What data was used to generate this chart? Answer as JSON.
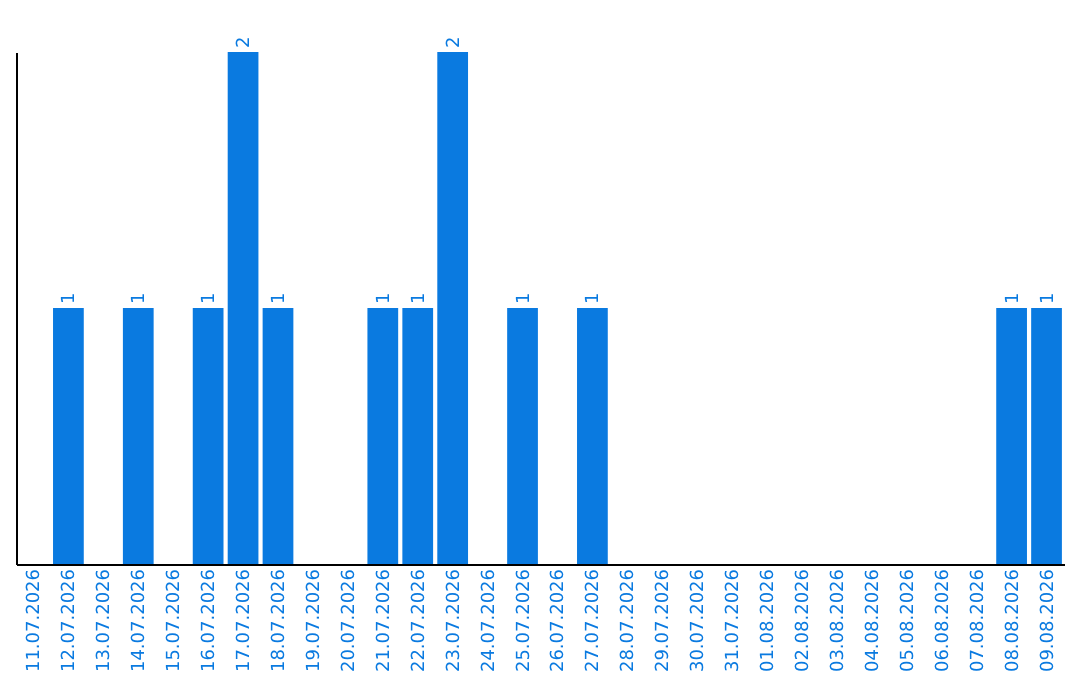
{
  "chart_data": {
    "type": "bar",
    "categories": [
      "11.07.2026",
      "12.07.2026",
      "13.07.2026",
      "14.07.2026",
      "15.07.2026",
      "16.07.2026",
      "17.07.2026",
      "18.07.2026",
      "19.07.2026",
      "20.07.2026",
      "21.07.2026",
      "22.07.2026",
      "23.07.2026",
      "24.07.2026",
      "25.07.2026",
      "26.07.2026",
      "27.07.2026",
      "28.07.2026",
      "29.07.2026",
      "30.07.2026",
      "31.07.2026",
      "01.08.2026",
      "02.08.2026",
      "03.08.2026",
      "04.08.2026",
      "05.08.2026",
      "06.08.2026",
      "07.08.2026",
      "08.08.2026",
      "09.08.2026"
    ],
    "values": [
      0,
      1,
      0,
      1,
      0,
      1,
      2,
      1,
      0,
      0,
      1,
      1,
      2,
      0,
      1,
      0,
      1,
      0,
      0,
      0,
      0,
      0,
      0,
      0,
      0,
      0,
      0,
      0,
      1,
      1
    ],
    "color": "#0a7ae0",
    "value_labels": [
      null,
      "1",
      null,
      "1",
      null,
      "1",
      "2",
      "1",
      null,
      null,
      "1",
      "1",
      "2",
      null,
      "1",
      null,
      "1",
      null,
      null,
      null,
      null,
      null,
      null,
      null,
      null,
      null,
      null,
      null,
      "1",
      "1"
    ],
    "tick_labels": "x",
    "grid": false
  }
}
